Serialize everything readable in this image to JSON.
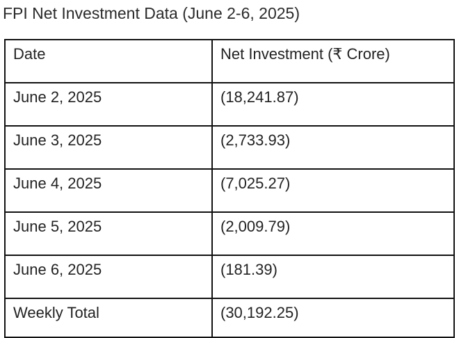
{
  "document": {
    "title": "FPI Net Investment Data (June 2-6, 2025)"
  },
  "table": {
    "headers": [
      "Date",
      "Net Investment (₹ Crore)"
    ],
    "rows": [
      [
        "June 2, 2025",
        "(18,241.87)"
      ],
      [
        "June 3, 2025",
        "(2,733.93)"
      ],
      [
        "June 4, 2025",
        "(7,025.27)"
      ],
      [
        "June 5, 2025",
        "(2,009.79)"
      ],
      [
        "June 6, 2025",
        "(181.39)"
      ],
      [
        "Weekly Total",
        "(30,192.25)"
      ]
    ]
  }
}
